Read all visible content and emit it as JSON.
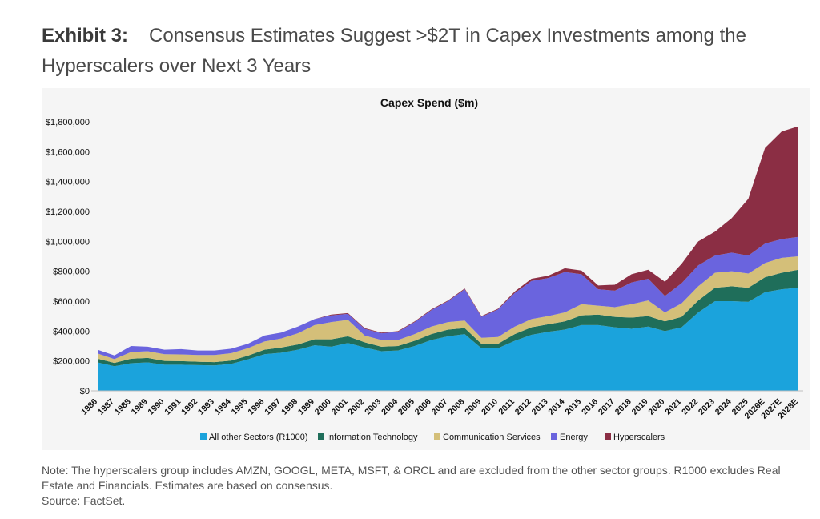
{
  "header": {
    "exhibit_label": "Exhibit 3:",
    "exhibit_title": "Consensus Estimates Suggest >$2T in Capex Investments among the Hyperscalers over Next 3 Years"
  },
  "footer": {
    "note": "Note: The hyperscalers group includes AMZN, GOOGL, META, MSFT, & ORCL and are excluded from the other sector groups. R1000 excludes Real Estate and Financials. Estimates are based on consensus.",
    "source": "Source: FactSet."
  },
  "chart_data": {
    "type": "area",
    "stacked": true,
    "title": "Capex Spend ($m)",
    "categories": [
      "1986",
      "1987",
      "1988",
      "1989",
      "1990",
      "1991",
      "1992",
      "1993",
      "1994",
      "1995",
      "1996",
      "1997",
      "1998",
      "1999",
      "2000",
      "2001",
      "2002",
      "2003",
      "2004",
      "2005",
      "2006",
      "2007",
      "2008",
      "2009",
      "2010",
      "2011",
      "2012",
      "2013",
      "2014",
      "2015",
      "2016",
      "2017",
      "2018",
      "2019",
      "2020",
      "2021",
      "2022",
      "2023",
      "2024",
      "2025",
      "2026E",
      "2027E",
      "2028E"
    ],
    "y_ticks": [
      "$0",
      "$200,000",
      "$400,000",
      "$600,000",
      "$800,000",
      "$1,000,000",
      "$1,200,000",
      "$1,400,000",
      "$1,600,000",
      "$1,800,000"
    ],
    "ylim": [
      0,
      1800000
    ],
    "legend_position": "bottom",
    "grid": false,
    "series": [
      {
        "name": "All other Sectors (R1000)",
        "color": "#1ba3dc",
        "values": [
          190000,
          165000,
          185000,
          190000,
          175000,
          175000,
          172000,
          170000,
          180000,
          210000,
          245000,
          255000,
          275000,
          305000,
          295000,
          320000,
          290000,
          265000,
          270000,
          300000,
          340000,
          365000,
          380000,
          285000,
          285000,
          335000,
          375000,
          395000,
          410000,
          440000,
          440000,
          425000,
          415000,
          430000,
          400000,
          425000,
          525000,
          600000,
          600000,
          595000,
          660000,
          680000,
          690000
        ]
      },
      {
        "name": "Information Technology",
        "color": "#1f6e5a",
        "values": [
          25000,
          22000,
          30000,
          30000,
          25000,
          24000,
          23000,
          22000,
          22000,
          25000,
          30000,
          35000,
          35000,
          40000,
          50000,
          45000,
          35000,
          30000,
          30000,
          35000,
          40000,
          45000,
          40000,
          30000,
          30000,
          45000,
          50000,
          50000,
          55000,
          65000,
          70000,
          70000,
          75000,
          70000,
          65000,
          70000,
          80000,
          90000,
          100000,
          95000,
          100000,
          110000,
          120000
        ]
      },
      {
        "name": "Communication Services",
        "color": "#d4bf79",
        "values": [
          35000,
          25000,
          45000,
          45000,
          45000,
          45000,
          45000,
          48000,
          50000,
          50000,
          55000,
          60000,
          75000,
          95000,
          115000,
          110000,
          45000,
          45000,
          40000,
          45000,
          50000,
          50000,
          50000,
          40000,
          45000,
          50000,
          55000,
          55000,
          60000,
          75000,
          60000,
          65000,
          90000,
          105000,
          60000,
          90000,
          95000,
          100000,
          100000,
          95000,
          95000,
          100000,
          90000
        ]
      },
      {
        "name": "Energy",
        "color": "#6a64de",
        "values": [
          25000,
          25000,
          40000,
          30000,
          30000,
          35000,
          30000,
          30000,
          30000,
          30000,
          40000,
          40000,
          45000,
          40000,
          45000,
          40000,
          45000,
          45000,
          55000,
          80000,
          110000,
          140000,
          210000,
          140000,
          185000,
          225000,
          255000,
          255000,
          270000,
          200000,
          110000,
          110000,
          145000,
          145000,
          110000,
          135000,
          140000,
          115000,
          125000,
          120000,
          130000,
          125000,
          130000
        ]
      },
      {
        "name": "Hyperscalers",
        "color": "#8b2e44",
        "values": [
          0,
          0,
          0,
          0,
          0,
          0,
          0,
          0,
          0,
          0,
          0,
          0,
          0,
          0,
          5000,
          5000,
          5000,
          5000,
          5000,
          5000,
          5000,
          5000,
          5000,
          5000,
          5000,
          10000,
          15000,
          15000,
          25000,
          25000,
          25000,
          40000,
          55000,
          60000,
          95000,
          130000,
          160000,
          160000,
          230000,
          380000,
          640000,
          720000,
          740000
        ]
      }
    ]
  }
}
